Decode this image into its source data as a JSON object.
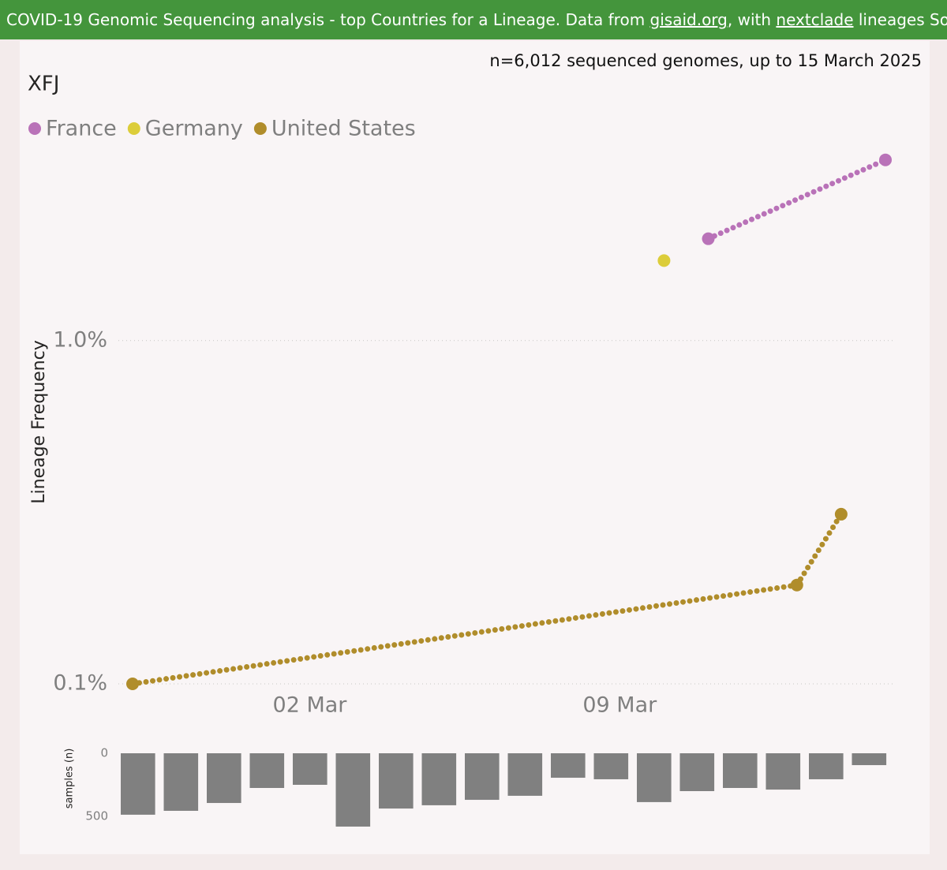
{
  "header": {
    "text_before": "COVID-19 Genomic Sequencing analysis - top Countries for a Lineage. Data from",
    "link1": "gisaid.org",
    "text_middle": ", with",
    "link2": "nextclade",
    "text_after": "lineages So"
  },
  "chart_data": [
    {
      "type": "line",
      "title": "XFJ",
      "subtitle": "n=6,012 sequenced genomes, up to 15 March 2025",
      "ylabel": "Lineage Frequency",
      "log_scale": true,
      "grid": true,
      "legend": "top-left",
      "xlim": [
        "26 Feb",
        "15 Mar"
      ],
      "xticks": [
        "02 Mar",
        "09 Mar"
      ],
      "ylim": [
        0.1,
        3.5
      ],
      "yticks": [
        {
          "value": 0.1,
          "label": "0.1%"
        },
        {
          "value": 1,
          "label": "1.0%"
        }
      ],
      "series": [
        {
          "name": "France",
          "color": "#b972b8",
          "x": [
            "11 Mar",
            "15 Mar"
          ],
          "values": [
            1.98,
            3.36
          ]
        },
        {
          "name": "Germany",
          "color": "#dccd3a",
          "x": [
            "10 Mar"
          ],
          "values": [
            1.71
          ]
        },
        {
          "name": "United States",
          "color": "#b08d2b",
          "x": [
            "26 Feb",
            "13 Mar",
            "14 Mar"
          ],
          "values": [
            0.1,
            0.194,
            0.312
          ]
        }
      ]
    },
    {
      "type": "bar",
      "ylabel": "samples (n)",
      "inverted": true,
      "color": "#808080",
      "ylim": [
        0,
        600
      ],
      "yticks": [
        0,
        500
      ],
      "values": [
        487,
        456,
        394,
        275,
        250,
        581,
        438,
        412,
        369,
        337,
        194,
        206,
        387,
        300,
        275,
        288,
        206,
        94
      ]
    }
  ]
}
